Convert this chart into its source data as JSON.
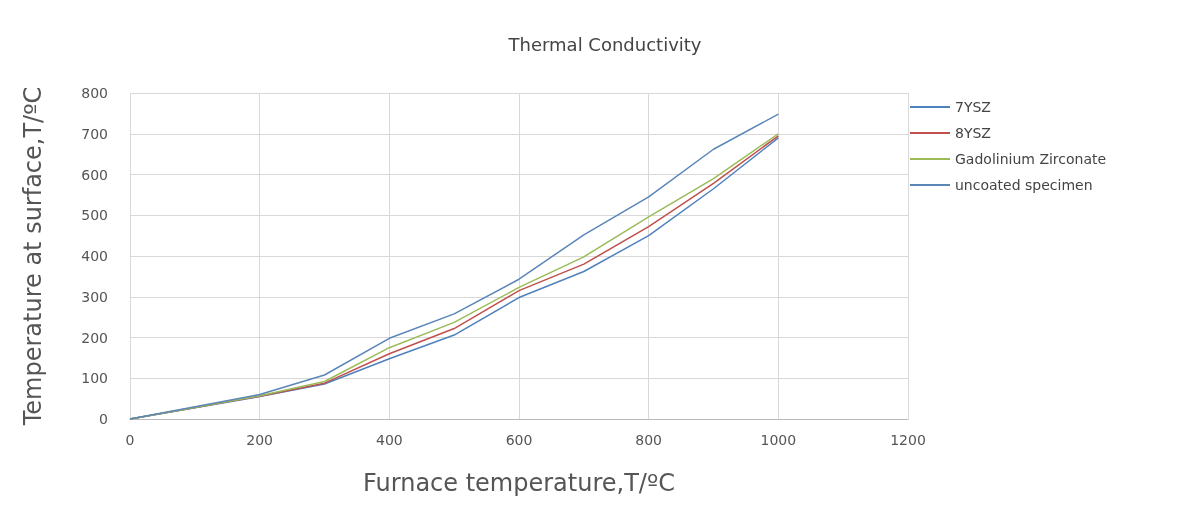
{
  "chart_data": {
    "type": "line",
    "title": "Thermal Conductivity",
    "xlabel": "Furnace temperature,T/ºC",
    "ylabel": "Temperature at surface,T/ºC",
    "x": [
      0,
      200,
      300,
      400,
      500,
      600,
      700,
      800,
      900,
      1000
    ],
    "series": [
      {
        "name": "7YSZ",
        "color": "#4f81bd",
        "values": [
          0,
          55,
          86,
          148,
          206,
          298,
          362,
          450,
          565,
          690
        ]
      },
      {
        "name": "8YSZ",
        "color": "#c0504d",
        "values": [
          0,
          56,
          88,
          160,
          222,
          315,
          380,
          472,
          578,
          695
        ]
      },
      {
        "name": "Gadolinium Zirconate",
        "color": "#9bbb59",
        "values": [
          0,
          57,
          92,
          175,
          237,
          323,
          398,
          496,
          590,
          700
        ]
      },
      {
        "name": "uncoated specimen",
        "color": "#5a86b8",
        "values": [
          0,
          60,
          108,
          198,
          258,
          343,
          452,
          545,
          662,
          748
        ]
      }
    ],
    "xlim": [
      0,
      1200
    ],
    "xticks": [
      0,
      200,
      400,
      600,
      800,
      1000,
      1200
    ],
    "ylim": [
      0,
      800
    ],
    "yticks": [
      0,
      100,
      200,
      300,
      400,
      500,
      600,
      700,
      800
    ],
    "grid": true,
    "legend": "right",
    "marker": "none",
    "line_style": "solid"
  }
}
